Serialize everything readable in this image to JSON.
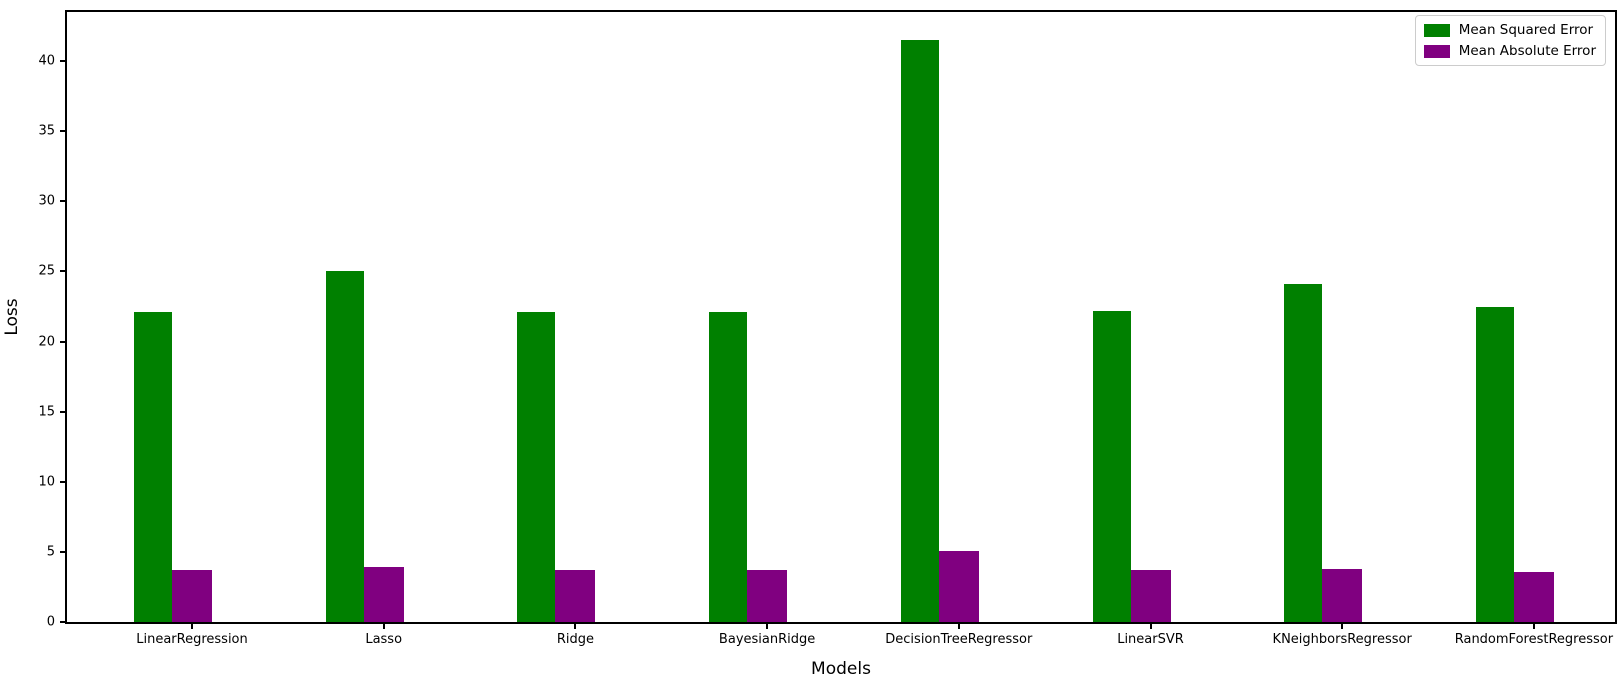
{
  "figure": {
    "background": "#ffffff",
    "axis_color": "#000000"
  },
  "chart_data": {
    "type": "bar",
    "title": "",
    "xlabel": "Models",
    "ylabel": "Loss",
    "categories": [
      "LinearRegression",
      "Lasso",
      "Ridge",
      "BayesianRidge",
      "DecisionTreeRegressor",
      "LinearSVR",
      "KNeighborsRegressor",
      "RandomForestRegressor"
    ],
    "series": [
      {
        "name": "Mean Squared Error",
        "color": "#008000",
        "values": [
          22.1,
          25.0,
          22.1,
          22.1,
          41.5,
          22.2,
          24.1,
          22.5
        ]
      },
      {
        "name": "Mean Absolute Error",
        "color": "#800080",
        "values": [
          3.7,
          3.95,
          3.7,
          3.7,
          5.05,
          3.7,
          3.8,
          3.6
        ]
      }
    ],
    "ylim": [
      0,
      43.5
    ],
    "yticks": [
      0,
      5,
      10,
      15,
      20,
      25,
      30,
      35,
      40
    ],
    "grid": false,
    "legend": {
      "position": "upper right",
      "entries": [
        "Mean Squared Error",
        "Mean Absolute Error"
      ]
    }
  }
}
